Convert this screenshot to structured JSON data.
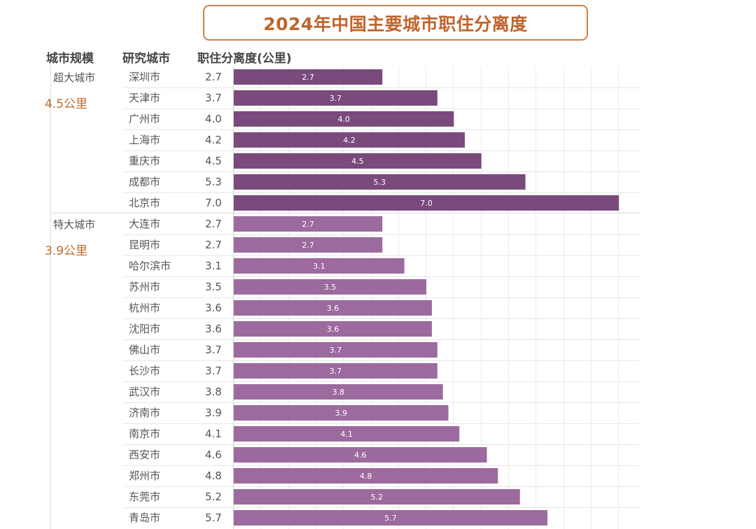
{
  "title": "2024年中国主要城市职住分离度",
  "headers": {
    "tier": "城市规模",
    "city": "研究城市",
    "distance": "职住分离度(公里)"
  },
  "tiers": [
    {
      "name": "超大城市",
      "average": "4.5公里"
    },
    {
      "name": "特大城市",
      "average": "3.9公里"
    }
  ],
  "colors": {
    "super_city_bar": "#7a4a7c",
    "mega_city_bar": "#9c6a9e",
    "title_border": "#c8824e",
    "title_text": "#c0642c",
    "tier_average": "#c06a2c"
  },
  "chart_data": {
    "type": "bar",
    "orientation": "horizontal",
    "title": "2024年中国主要城市职住分离度",
    "xlabel": "职住分离度(公里)",
    "ylabel": "研究城市",
    "xlim": [
      0,
      7.0
    ],
    "grid": true,
    "categories": [
      "深圳市",
      "天津市",
      "广州市",
      "上海市",
      "重庆市",
      "成都市",
      "北京市",
      "大连市",
      "昆明市",
      "哈尔滨市",
      "苏州市",
      "杭州市",
      "沈阳市",
      "佛山市",
      "长沙市",
      "武汉市",
      "济南市",
      "南京市",
      "西安市",
      "郑州市",
      "东莞市",
      "青岛市"
    ],
    "values": [
      2.7,
      3.7,
      4.0,
      4.2,
      4.5,
      5.3,
      7.0,
      2.7,
      2.7,
      3.1,
      3.5,
      3.6,
      3.6,
      3.7,
      3.7,
      3.8,
      3.9,
      4.1,
      4.6,
      4.8,
      5.2,
      5.7
    ],
    "display_values": [
      "2.7",
      "3.7",
      "4.0",
      "4.2",
      "4.5",
      "5.3",
      "7.0",
      "2.7",
      "2.7",
      "3.1",
      "3.5",
      "3.6",
      "3.6",
      "3.7",
      "3.7",
      "3.8",
      "3.9",
      "4.1",
      "4.6",
      "4.8",
      "5.2",
      "5.7"
    ],
    "groups": [
      "超大城市",
      "超大城市",
      "超大城市",
      "超大城市",
      "超大城市",
      "超大城市",
      "超大城市",
      "特大城市",
      "特大城市",
      "特大城市",
      "特大城市",
      "特大城市",
      "特大城市",
      "特大城市",
      "特大城市",
      "特大城市",
      "特大城市",
      "特大城市",
      "特大城市",
      "特大城市",
      "特大城市",
      "特大城市"
    ]
  }
}
